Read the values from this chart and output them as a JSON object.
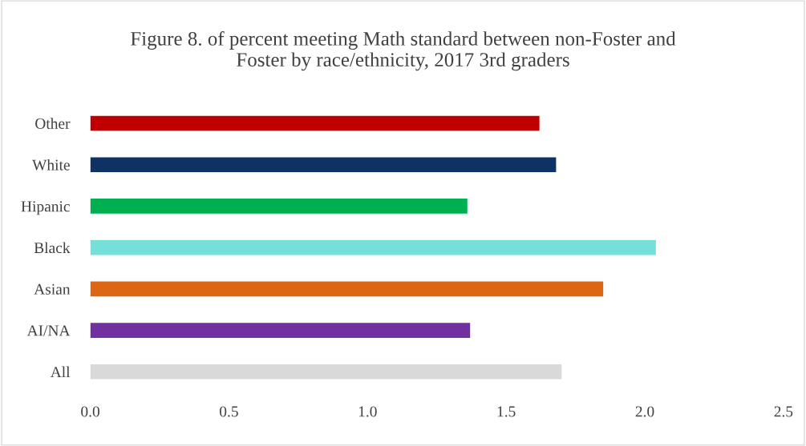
{
  "chart_data": {
    "type": "bar",
    "orientation": "horizontal",
    "title": "Figure 8. of percent meeting Math standard between non-Foster and\nFoster by race/ethnicity, 2017 3rd graders",
    "categories": [
      "Other",
      "White",
      "Hipanic",
      "Black",
      "Asian",
      "AI/NA",
      "All"
    ],
    "values": [
      1.62,
      1.68,
      1.36,
      2.04,
      1.85,
      1.37,
      1.7
    ],
    "colors": [
      "#c00000",
      "#0e3263",
      "#00b050",
      "#75e0d9",
      "#dd6614",
      "#7030a0",
      "#d9d9d9"
    ],
    "xlim": [
      0,
      2.5
    ],
    "xticks": [
      {
        "value": 0,
        "label": "0.0"
      },
      {
        "value": 0.5,
        "label": "0.5"
      },
      {
        "value": 1,
        "label": "1.0"
      },
      {
        "value": 1.5,
        "label": "1.5"
      },
      {
        "value": 2,
        "label": "2.0"
      },
      {
        "value": 2.5,
        "label": "2.5"
      }
    ],
    "grid": false,
    "legend": false
  }
}
